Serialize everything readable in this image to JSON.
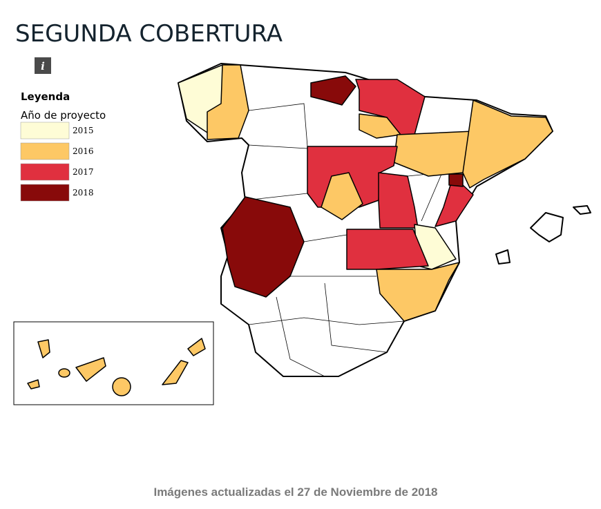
{
  "header": {
    "title": "SEGUNDA COBERTURA",
    "info_icon": "i"
  },
  "legend": {
    "title": "Leyenda",
    "subtitle": "Año de proyecto",
    "items": [
      {
        "label": "2015",
        "color": "#fefcd6"
      },
      {
        "label": "2016",
        "color": "#fdc865"
      },
      {
        "label": "2017",
        "color": "#e0303f"
      },
      {
        "label": "2018",
        "color": "#880a0a"
      }
    ]
  },
  "footer": {
    "text": "Imágenes actualizadas el 27 de Noviembre de 2018"
  }
}
